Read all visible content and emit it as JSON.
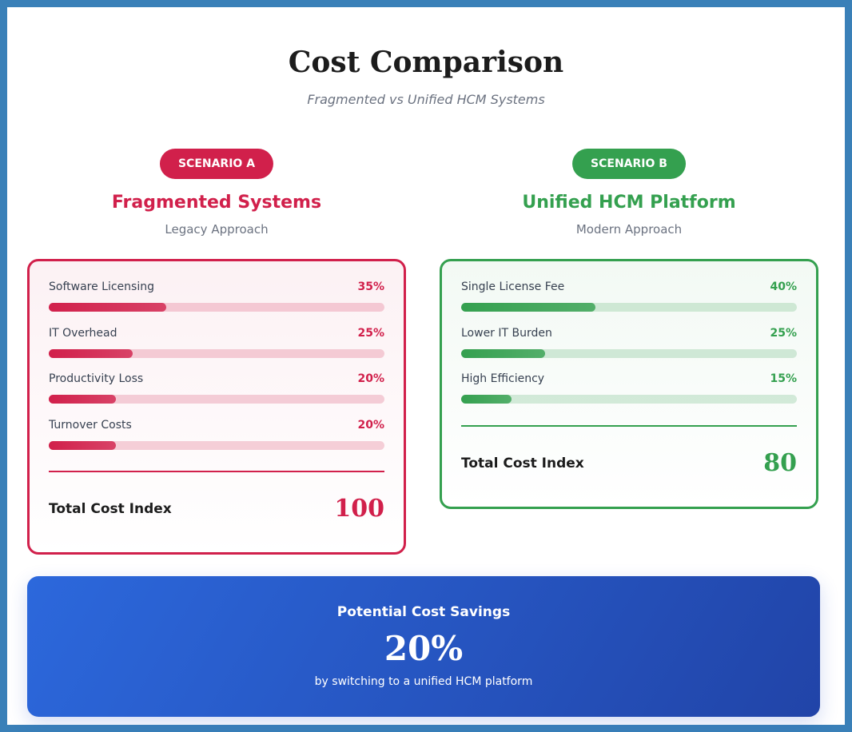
{
  "header": {
    "title": "Cost Comparison",
    "subtitle": "Fragmented vs Unified HCM Systems"
  },
  "scenarios": [
    {
      "badge": "SCENARIO A",
      "title": "Fragmented Systems",
      "subtitle": "Legacy Approach",
      "color": "#d1204b",
      "items": [
        {
          "name": "Software Licensing",
          "value": 35,
          "label": "35%"
        },
        {
          "name": "IT Overhead",
          "value": 25,
          "label": "25%"
        },
        {
          "name": "Productivity Loss",
          "value": 20,
          "label": "20%"
        },
        {
          "name": "Turnover Costs",
          "value": 20,
          "label": "20%"
        }
      ],
      "total_label": "Total Cost Index",
      "total": 100
    },
    {
      "badge": "SCENARIO B",
      "title": "Unified HCM Platform",
      "subtitle": "Modern Approach",
      "color": "#34a04f",
      "items": [
        {
          "name": "Single License Fee",
          "value": 40,
          "label": "40%"
        },
        {
          "name": "Lower IT Burden",
          "value": 25,
          "label": "25%"
        },
        {
          "name": "High Efficiency",
          "value": 15,
          "label": "15%"
        }
      ],
      "total_label": "Total Cost Index",
      "total": 80
    }
  ],
  "savings": {
    "title": "Potential Cost Savings",
    "value": "20%",
    "note": "by switching to a unified HCM platform"
  }
}
